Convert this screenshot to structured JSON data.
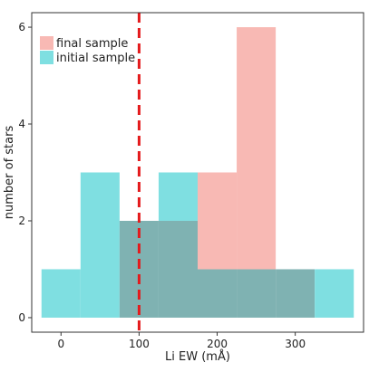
{
  "chart_data": {
    "type": "bar",
    "title": "",
    "xlabel": "Li EW (mÅ)",
    "ylabel": "number of stars",
    "xlim": [
      -37.5,
      387.5
    ],
    "ylim": [
      -0.3,
      6.3
    ],
    "x_ticks": [
      0,
      100,
      200,
      300
    ],
    "y_ticks": [
      0,
      2,
      4,
      6
    ],
    "bin_width": 50,
    "grid": false,
    "legend_position": "top-left",
    "reference_line": {
      "x": 100,
      "color": "#e41a1c",
      "style": "dashed"
    },
    "series": [
      {
        "name": "initial sample",
        "color": "#7fdfe1",
        "bin_centers": [
          0,
          50,
          100,
          150,
          200,
          250,
          300,
          350
        ],
        "values": [
          1,
          3,
          2,
          3,
          1,
          1,
          1,
          1
        ]
      },
      {
        "name": "final sample",
        "color": "#f8b9b4",
        "bin_centers": [
          100,
          150,
          200,
          250,
          300
        ],
        "values": [
          2,
          2,
          3,
          6,
          1
        ]
      }
    ],
    "overlap_color": "#7fb2b2"
  }
}
